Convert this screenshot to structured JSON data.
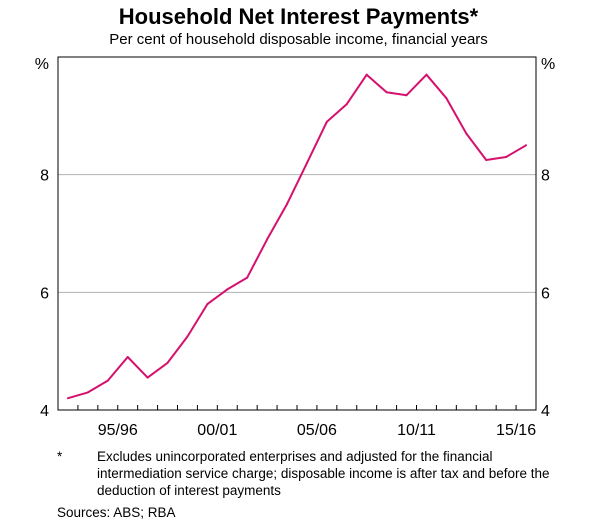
{
  "title": "Household Net Interest Payments*",
  "subtitle": "Per cent of household disposable income, financial years",
  "unit_left": "%",
  "unit_right": "%",
  "footnote_mark": "*",
  "footnote_text": "Excludes unincorporated enterprises and adjusted for the financial intermediation service charge; disposable income is after tax and before the deduction of interest payments",
  "sources": "Sources:   ABS; RBA",
  "colors": {
    "line": "#d6106e",
    "grid": "#b3b3b3",
    "frame": "#000000"
  },
  "chart_data": {
    "type": "line",
    "title": "Household Net Interest Payments*",
    "subtitle": "Per cent of household disposable income, financial years",
    "ylim": [
      4,
      10
    ],
    "yticks": [
      4,
      6,
      8
    ],
    "grid": "horizontal",
    "x": [
      "1992/93",
      "1993/94",
      "1994/95",
      "1995/96",
      "1996/97",
      "1997/98",
      "1998/99",
      "1999/00",
      "2000/01",
      "2001/02",
      "2002/03",
      "2003/04",
      "2004/05",
      "2005/06",
      "2006/07",
      "2007/08",
      "2008/09",
      "2009/10",
      "2010/11",
      "2011/12",
      "2012/13",
      "2013/14",
      "2014/15",
      "2015/16"
    ],
    "xtick_labels": [
      "95/96",
      "00/01",
      "05/06",
      "10/11",
      "15/16"
    ],
    "series": [
      {
        "values": [
          4.2,
          4.3,
          4.5,
          4.9,
          4.55,
          4.8,
          5.25,
          5.8,
          6.05,
          6.25,
          6.9,
          7.5,
          8.2,
          8.9,
          9.2,
          9.7,
          9.4,
          9.35,
          9.7,
          9.3,
          8.7,
          8.25,
          8.3,
          8.5
        ]
      }
    ]
  }
}
